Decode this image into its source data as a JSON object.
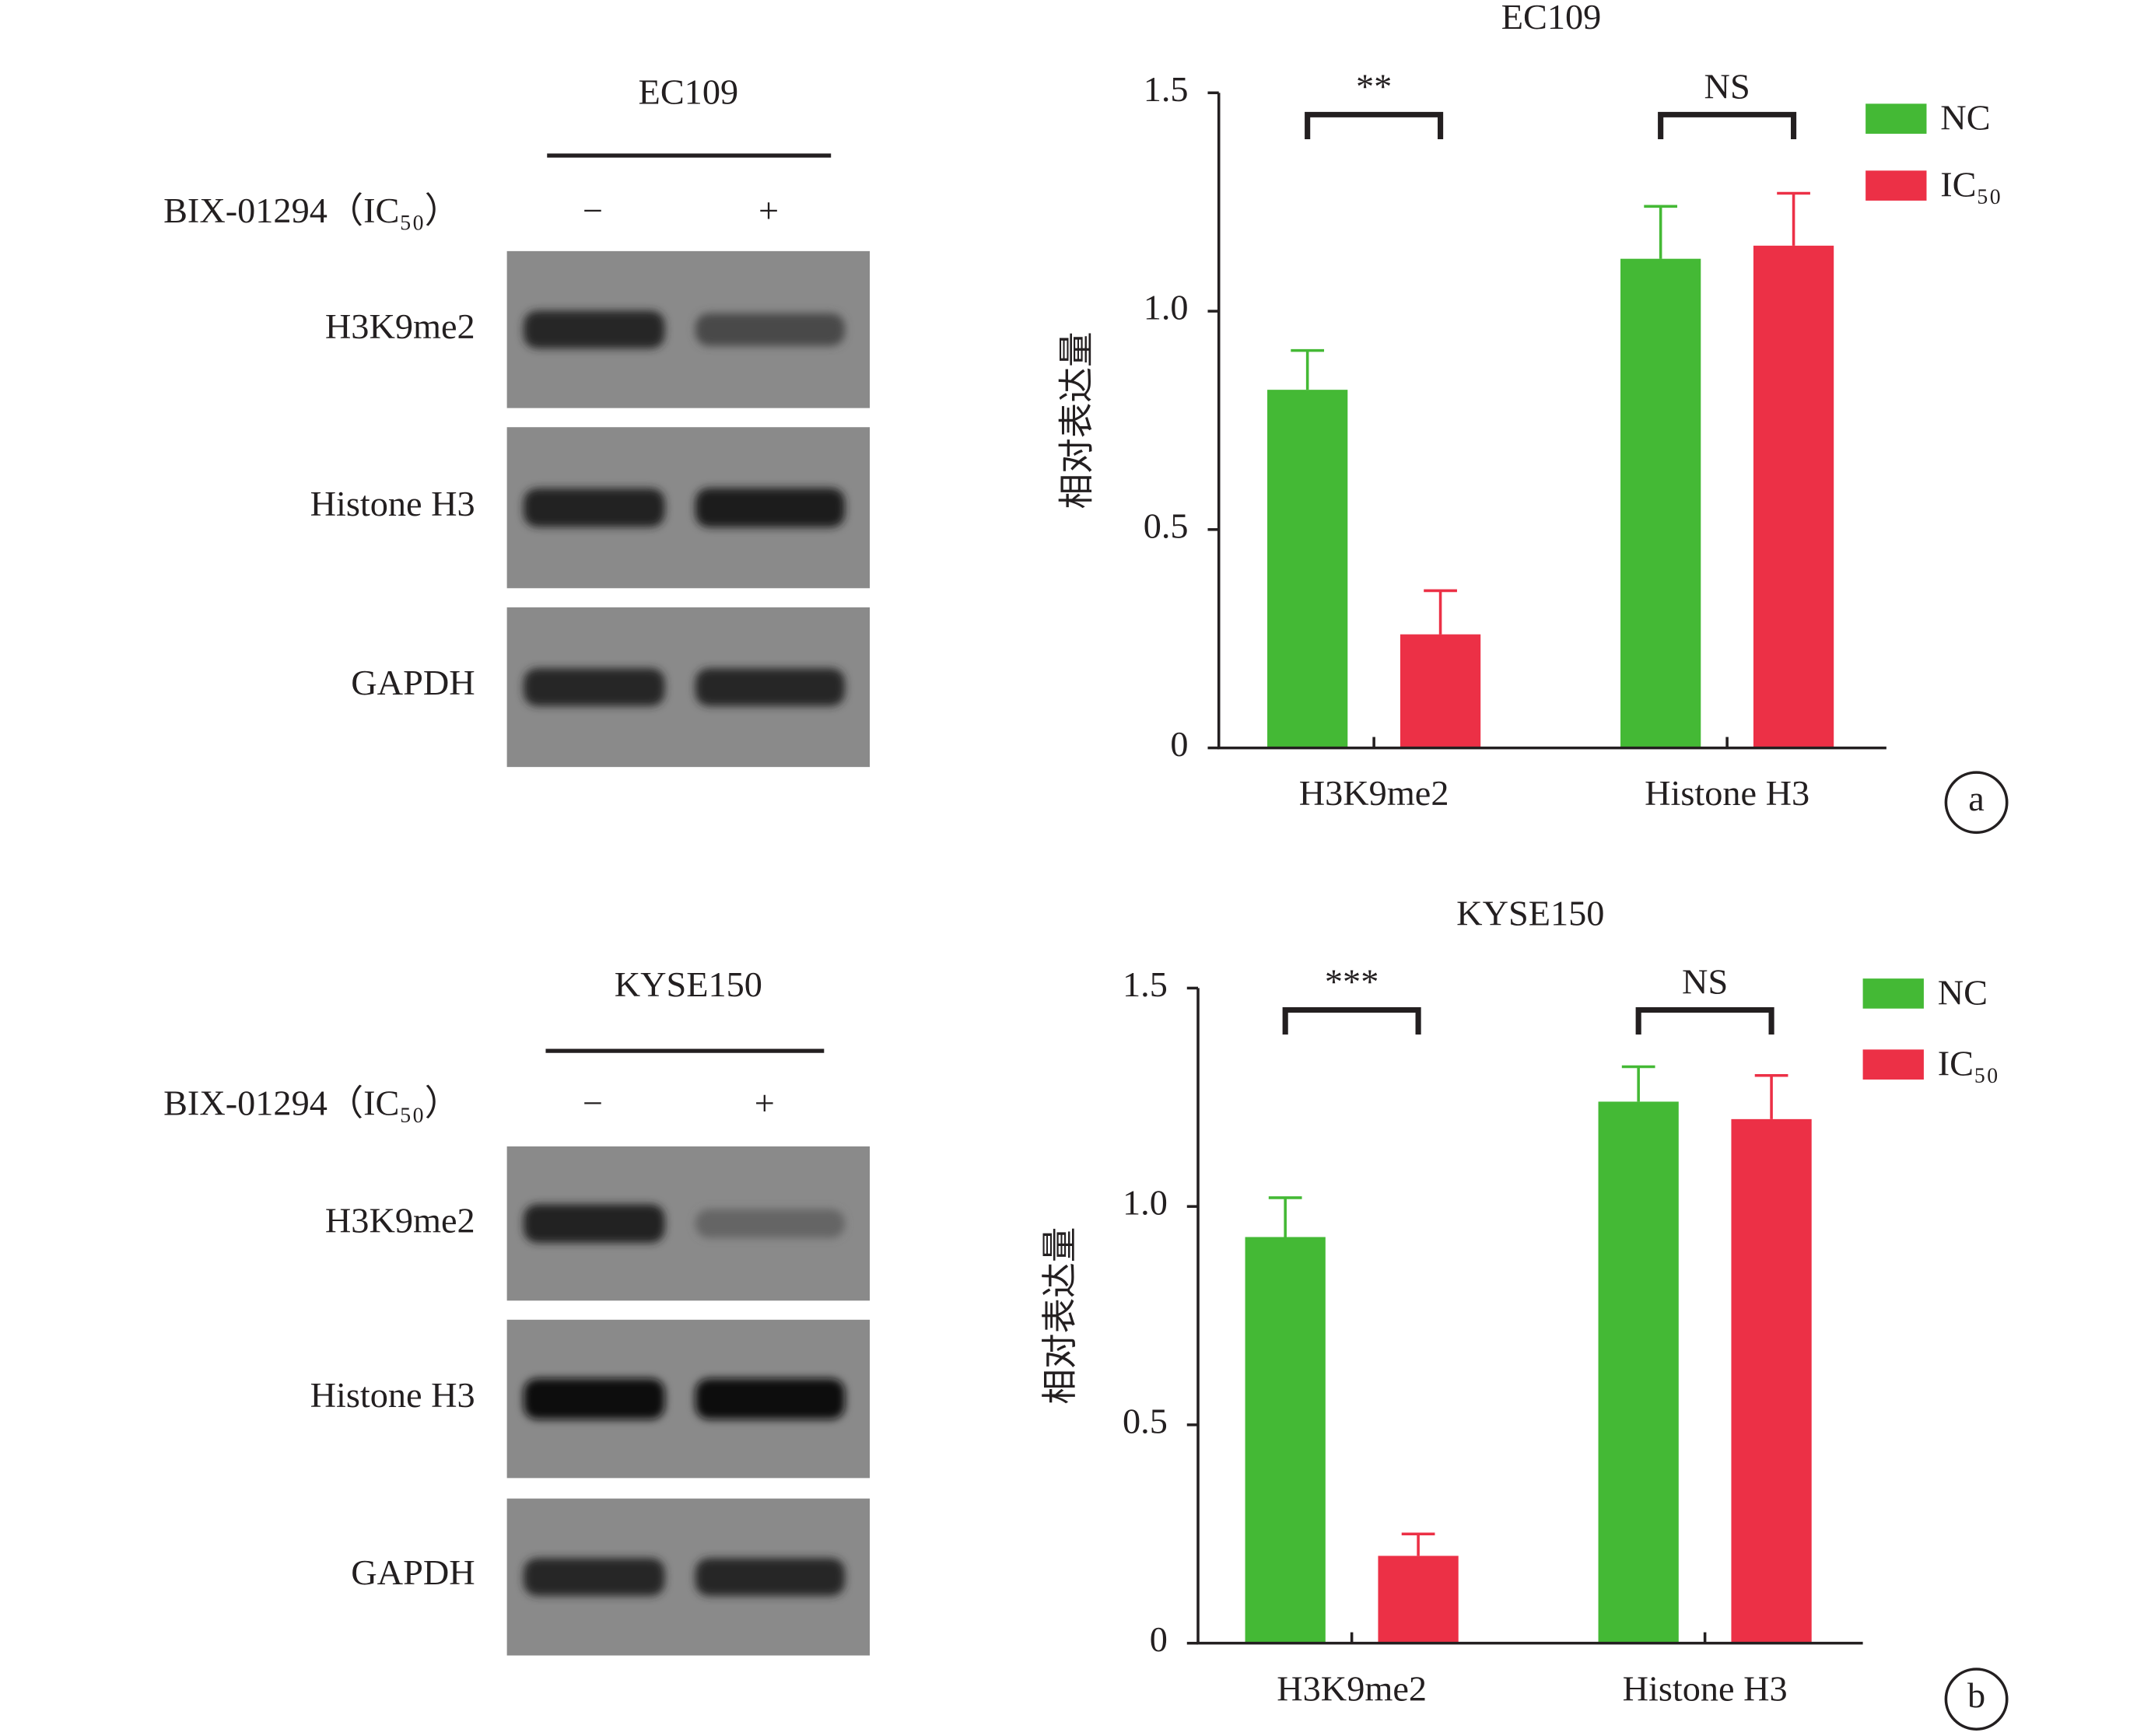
{
  "blots": [
    {
      "title": "EC109",
      "treatment": "BIX-01294（IC₅₀）",
      "lanes": [
        "−",
        "+"
      ],
      "bands": [
        "H3K9me2",
        "Histone H3",
        "GAPDH"
      ]
    },
    {
      "title": "KYSE150",
      "treatment": "BIX-01294（IC₅₀）",
      "lanes": [
        "−",
        "+"
      ],
      "bands": [
        "H3K9me2",
        "Histone H3",
        "GAPDH"
      ]
    }
  ],
  "chart_data": [
    {
      "type": "bar",
      "title": "EC109",
      "y_label": "相对表达量",
      "categories": [
        "H3K9me2",
        "Histone H3"
      ],
      "series": [
        {
          "name": "NC",
          "color": "#44b935",
          "values": [
            0.82,
            1.12
          ],
          "errors": [
            0.09,
            0.12
          ]
        },
        {
          "name": "IC₅₀",
          "color": "#ec3046",
          "values": [
            0.26,
            1.15
          ],
          "errors": [
            0.1,
            0.12
          ]
        }
      ],
      "ylim": [
        0,
        1.5
      ],
      "yticks": [
        0,
        0.5,
        {
          "value": 1,
          "label": "1.0"
        },
        1.5
      ],
      "annotations": [
        "**",
        "NS"
      ],
      "panel_label": "a"
    },
    {
      "type": "bar",
      "title": "KYSE150",
      "y_label": "相对表达量",
      "categories": [
        "H3K9me2",
        "Histone H3"
      ],
      "series": [
        {
          "name": "NC",
          "color": "#44b935",
          "values": [
            0.93,
            1.24
          ],
          "errors": [
            0.09,
            0.08
          ]
        },
        {
          "name": "IC₅₀",
          "color": "#ec3046",
          "values": [
            0.2,
            1.2
          ],
          "errors": [
            0.05,
            0.1
          ]
        }
      ],
      "ylim": [
        0,
        1.5
      ],
      "yticks": [
        0,
        0.5,
        {
          "value": 1,
          "label": "1.0"
        },
        1.5
      ],
      "annotations": [
        "***",
        "NS"
      ],
      "panel_label": "b"
    }
  ]
}
